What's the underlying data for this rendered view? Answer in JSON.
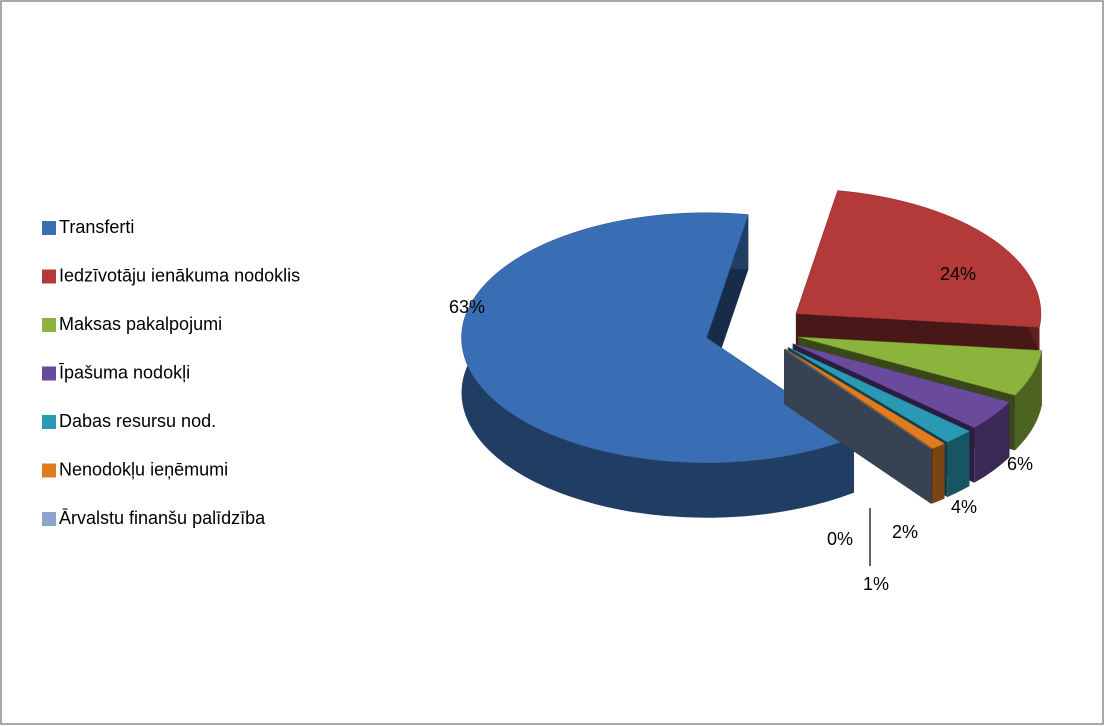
{
  "chart_data": {
    "type": "pie",
    "categories": [
      "Transferti",
      "Iedzīvotāju ienākuma nodoklis",
      "Maksas pakalpojumi",
      "Īpašuma nodokļi",
      "Dabas resursu nod.",
      "Nenodokļu ieņēmumi",
      "Ārvalstu finanšu palīdzība"
    ],
    "values": [
      63,
      24,
      6,
      4,
      2,
      1,
      0
    ],
    "value_labels": [
      "63%",
      "24%",
      "6%",
      "4%",
      "2%",
      "1%",
      "0%"
    ],
    "colors": [
      "#3a6eb4",
      "#b43a3a",
      "#8cb43c",
      "#6a4a9c",
      "#2a9ab4",
      "#e07b20",
      "#8aa4cc"
    ],
    "legend": "left"
  }
}
